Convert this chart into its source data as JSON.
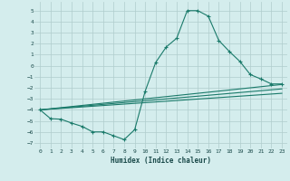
{
  "xlabel": "Humidex (Indice chaleur)",
  "xlim": [
    -0.5,
    23.5
  ],
  "ylim": [
    -7.5,
    5.8
  ],
  "yticks": [
    -7,
    -6,
    -5,
    -4,
    -3,
    -2,
    -1,
    0,
    1,
    2,
    3,
    4,
    5
  ],
  "xticks": [
    0,
    1,
    2,
    3,
    4,
    5,
    6,
    7,
    8,
    9,
    10,
    11,
    12,
    13,
    14,
    15,
    16,
    17,
    18,
    19,
    20,
    21,
    22,
    23
  ],
  "bg_color": "#d4eded",
  "grid_color": "#b0cccc",
  "line_color": "#1a7a6a",
  "line1_x": [
    0,
    1,
    2,
    3,
    4,
    5,
    6,
    7,
    8,
    9,
    10,
    11,
    12,
    13,
    14,
    15,
    16,
    17,
    18,
    19,
    20,
    21,
    22,
    23
  ],
  "line1_y": [
    -4.0,
    -4.8,
    -4.85,
    -5.2,
    -5.5,
    -6.0,
    -6.0,
    -6.35,
    -6.7,
    -5.8,
    -2.3,
    0.3,
    1.7,
    2.5,
    5.0,
    5.0,
    4.5,
    2.3,
    1.3,
    0.4,
    -0.8,
    -1.2,
    -1.65,
    -1.65
  ],
  "line2_x": [
    0,
    23
  ],
  "line2_y": [
    -4.0,
    -1.7
  ],
  "line3_x": [
    0,
    23
  ],
  "line3_y": [
    -4.0,
    -2.1
  ],
  "line4_x": [
    0,
    23
  ],
  "line4_y": [
    -4.0,
    -2.5
  ]
}
